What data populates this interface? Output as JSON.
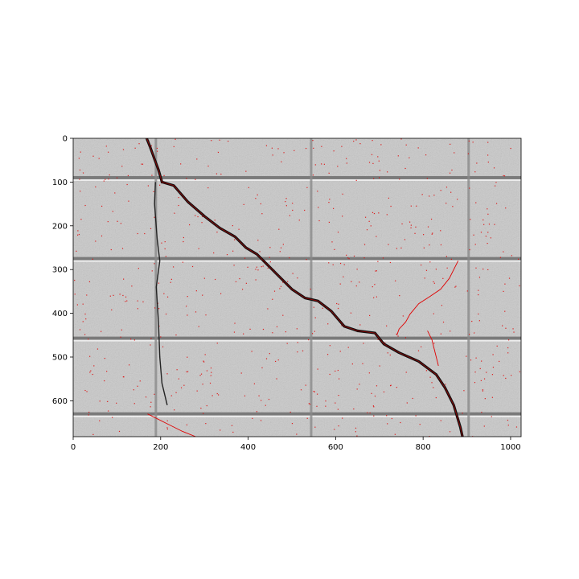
{
  "chart_data": {
    "type": "image",
    "title": "",
    "xlabel": "",
    "ylabel": "",
    "image_width": 1024,
    "image_height": 682,
    "xlim": [
      0,
      1024
    ],
    "ylim": [
      682,
      0
    ],
    "xticks": [
      0,
      200,
      400,
      600,
      800,
      1000
    ],
    "xtick_labels": [
      "0",
      "200",
      "400",
      "600",
      "800",
      "1000"
    ],
    "yticks": [
      0,
      100,
      200,
      300,
      400,
      500,
      600
    ],
    "ytick_labels": [
      "0",
      "100",
      "200",
      "300",
      "400",
      "500",
      "600"
    ],
    "content": "grayscale photo of cracked concrete block wall with detected crack pixels overlaid in red",
    "colors": {
      "overlay": "#e00000",
      "crack": "#111111",
      "wall": "#c8c8c8"
    },
    "crack_path": [
      [
        168,
        0
      ],
      [
        176,
        20
      ],
      [
        185,
        45
      ],
      [
        195,
        72
      ],
      [
        203,
        100
      ],
      [
        230,
        108
      ],
      [
        262,
        145
      ],
      [
        300,
        178
      ],
      [
        335,
        205
      ],
      [
        370,
        225
      ],
      [
        395,
        250
      ],
      [
        420,
        265
      ],
      [
        445,
        290
      ],
      [
        470,
        315
      ],
      [
        500,
        345
      ],
      [
        530,
        365
      ],
      [
        560,
        372
      ],
      [
        590,
        395
      ],
      [
        620,
        430
      ],
      [
        650,
        440
      ],
      [
        690,
        445
      ],
      [
        710,
        470
      ],
      [
        745,
        490
      ],
      [
        790,
        510
      ],
      [
        830,
        540
      ],
      [
        850,
        570
      ],
      [
        870,
        610
      ],
      [
        885,
        660
      ],
      [
        890,
        682
      ]
    ],
    "secondary_cracks": [
      [
        [
          188,
          100
        ],
        [
          186,
          150
        ],
        [
          192,
          230
        ],
        [
          198,
          280
        ],
        [
          190,
          340
        ],
        [
          195,
          420
        ],
        [
          198,
          500
        ],
        [
          203,
          560
        ],
        [
          215,
          610
        ]
      ],
      [
        [
          880,
          280
        ],
        [
          860,
          320
        ],
        [
          840,
          345
        ],
        [
          815,
          362
        ],
        [
          790,
          378
        ],
        [
          770,
          402
        ],
        [
          760,
          420
        ],
        [
          745,
          436
        ],
        [
          740,
          450
        ]
      ],
      [
        [
          810,
          440
        ],
        [
          820,
          460
        ],
        [
          825,
          480
        ],
        [
          830,
          500
        ],
        [
          835,
          520
        ]
      ],
      [
        [
          170,
          630
        ],
        [
          210,
          650
        ],
        [
          250,
          670
        ],
        [
          280,
          682
        ]
      ]
    ],
    "mortar_rows": [
      90,
      275,
      457,
      630
    ],
    "mortar_cols": [
      190,
      545,
      905
    ]
  }
}
